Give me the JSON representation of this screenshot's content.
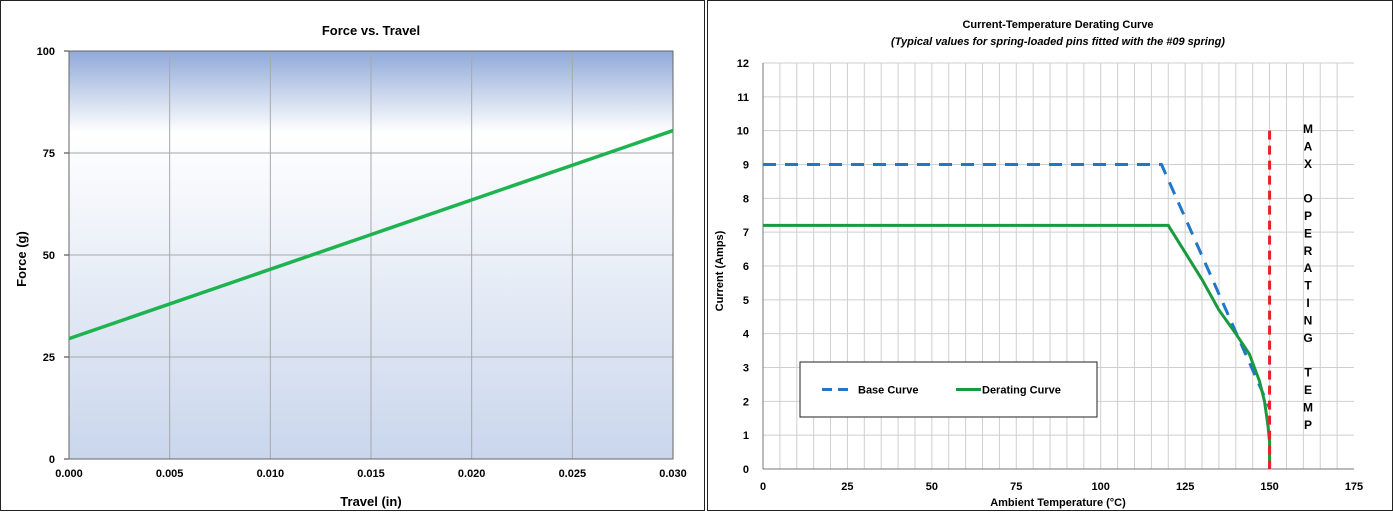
{
  "chart_data": [
    {
      "type": "line",
      "title": "Force vs. Travel",
      "xlabel": "Travel (in)",
      "ylabel": "Force (g)",
      "xlim": [
        0,
        0.03
      ],
      "ylim": [
        0,
        100
      ],
      "x_ticks": [
        "0.000",
        "0.005",
        "0.010",
        "0.015",
        "0.020",
        "0.025",
        "0.030"
      ],
      "y_ticks": [
        "0",
        "25",
        "50",
        "75",
        "100"
      ],
      "grid": true,
      "legend": "none",
      "colors": {
        "line": "#1db34f",
        "plot_top": "#8fa9d9",
        "plot_mid": "#ffffff",
        "plot_bottom": "#c9d6ec"
      },
      "series": [
        {
          "x": [
            0,
            0.03
          ],
          "y": [
            29.5,
            80.5
          ]
        }
      ]
    },
    {
      "type": "line",
      "title": "Current-Temperature Derating Curve",
      "subtitle": "(Typical values for spring-loaded pins fitted with the #09 spring)",
      "xlabel": "Ambient Temperature (°C)",
      "ylabel": "Current (Amps)",
      "xlim": [
        0,
        175
      ],
      "ylim": [
        0,
        12
      ],
      "x_ticks": [
        "0",
        "25",
        "50",
        "75",
        "100",
        "125",
        "150",
        "175"
      ],
      "y_ticks": [
        "0",
        "1",
        "2",
        "3",
        "4",
        "5",
        "6",
        "7",
        "8",
        "9",
        "10",
        "11",
        "12"
      ],
      "grid": true,
      "legend": "bottom-left",
      "series": [
        {
          "name": "Base Curve",
          "style": "dashed",
          "color": "#1f77c8",
          "x": [
            0,
            118,
            150
          ],
          "y": [
            9,
            9,
            1.8
          ]
        },
        {
          "name": "Derating Curve",
          "style": "solid",
          "color": "#1a9a3e",
          "x": [
            0,
            120,
            125,
            130,
            135,
            140,
            144,
            147,
            148.5,
            149.5,
            150,
            150
          ],
          "y": [
            7.2,
            7.2,
            6.4,
            5.6,
            4.7,
            4.0,
            3.4,
            2.6,
            2.0,
            1.3,
            0.8,
            0
          ]
        }
      ],
      "annotation": {
        "label": [
          "M",
          "A",
          "X",
          "",
          "O",
          "P",
          "E",
          "R",
          "A",
          "T",
          "I",
          "N",
          "G",
          "",
          "T",
          "E",
          "M",
          "P"
        ],
        "line_x": 150,
        "line_y_top": 10,
        "color": "#e8202a"
      }
    }
  ]
}
